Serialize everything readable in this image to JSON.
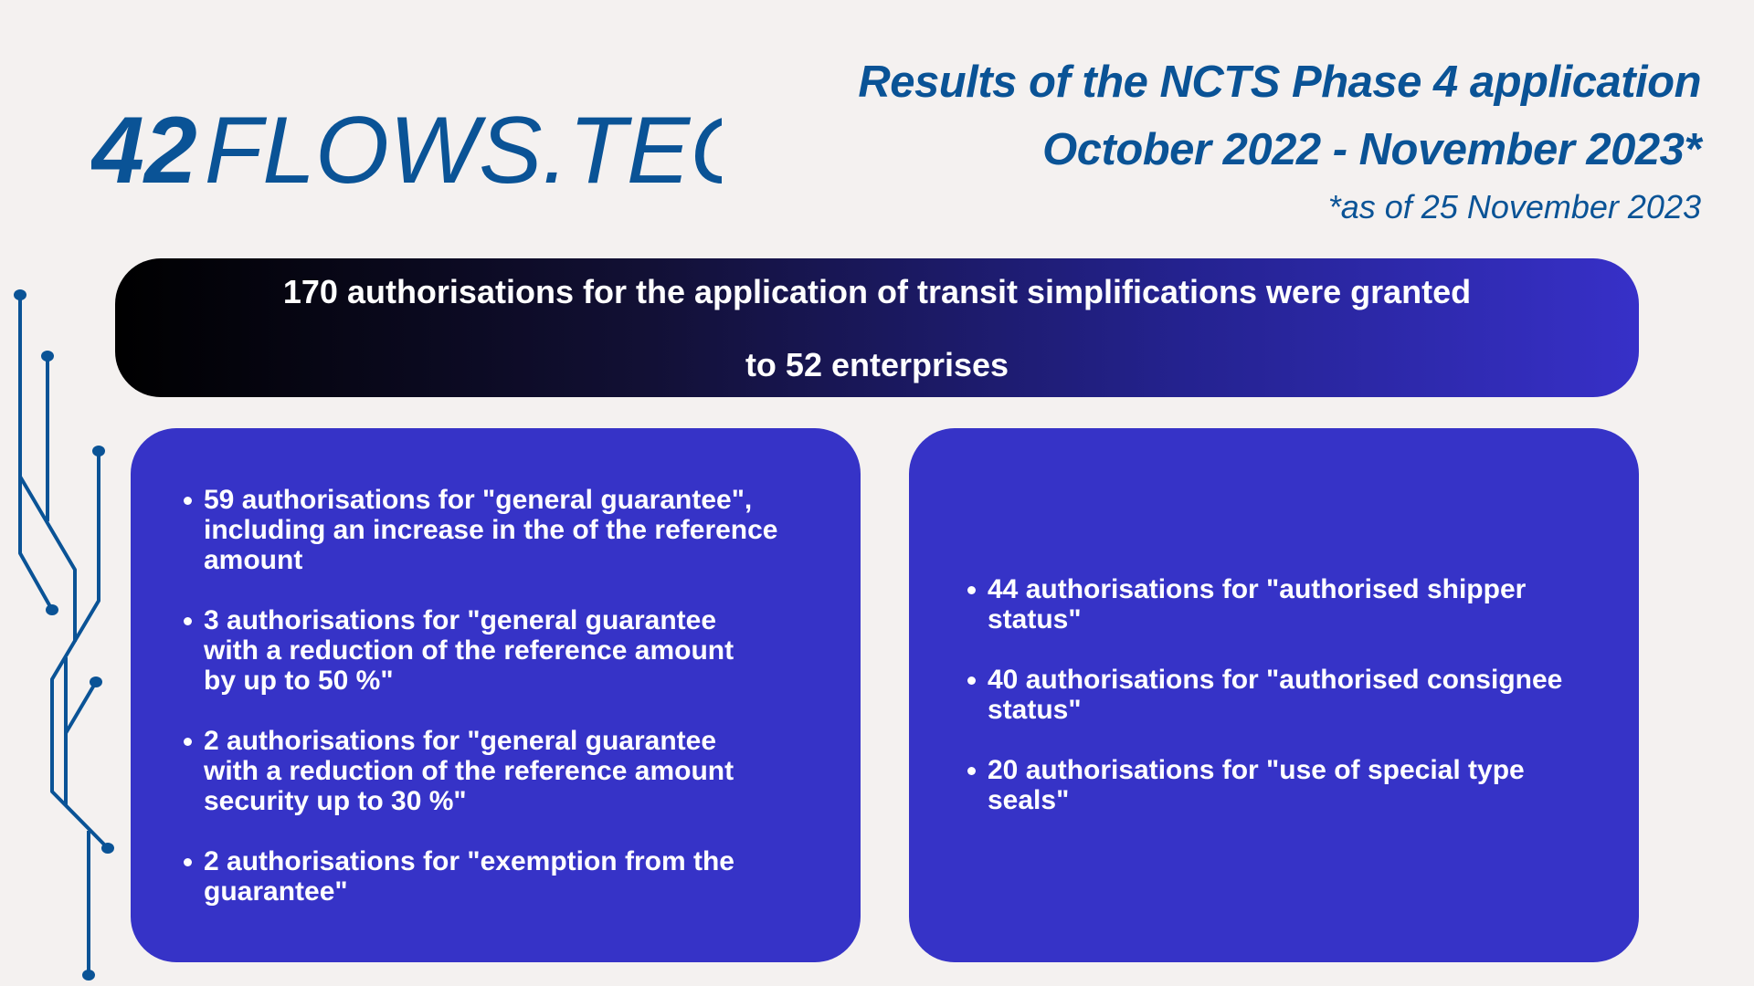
{
  "logo": {
    "bold": "42",
    "light": "FLOWS.TECH",
    "color": "#0a5396"
  },
  "header": {
    "title_line1": "Results of the NCTS Phase 4 application",
    "title_line2": "October 2022 - November 2023*",
    "footnote": "*as of 25 November 2023"
  },
  "banner": {
    "line1": "170 authorisations for the application of transit simplifications were granted",
    "line2": "to 52 enterprises"
  },
  "left_box": {
    "items": [
      {
        "lines": [
          "59 authorisations for \"general guarantee\",",
          "including an increase in the of the reference",
          "amount"
        ]
      },
      {
        "lines": [
          "3 authorisations for \"general guarantee",
          "with a reduction of the reference amount",
          "by up to 50 %\""
        ]
      },
      {
        "lines": [
          "2 authorisations for \"general guarantee",
          "with a reduction of the reference amount",
          "security up to 30 %\""
        ]
      },
      {
        "lines": [
          "2 authorisations for \"exemption from the",
          "guarantee\""
        ]
      }
    ]
  },
  "right_box": {
    "items": [
      {
        "lines": [
          "44 authorisations for \"authorised shipper",
          "status\""
        ]
      },
      {
        "lines": [
          "40 authorisations for \"authorised consignee",
          "status\""
        ]
      },
      {
        "lines": [
          "20 authorisations for \"use of special type",
          "seals\""
        ]
      }
    ]
  },
  "colors": {
    "background": "#f4f1f0",
    "brand_blue": "#0a5396",
    "box": "#3633c7"
  }
}
